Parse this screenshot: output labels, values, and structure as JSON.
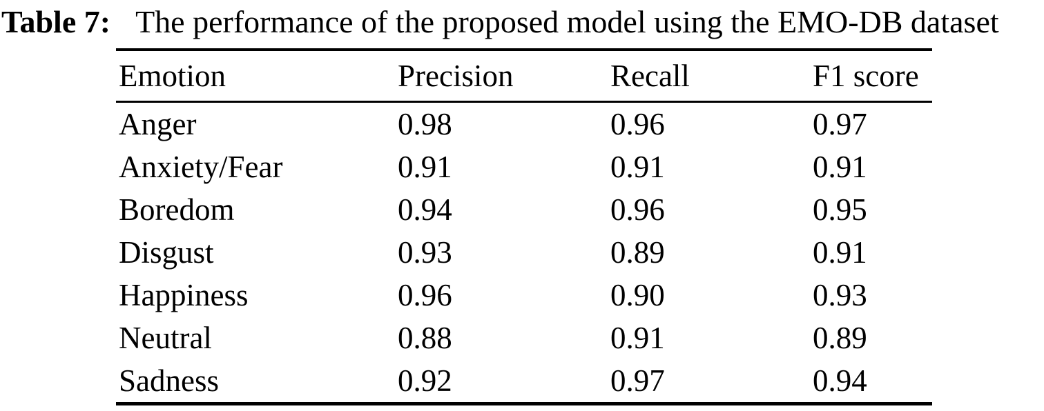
{
  "caption": {
    "label": "Table 7:",
    "text": "The performance of the proposed model using the EMO-DB dataset"
  },
  "table": {
    "columns": [
      "Emotion",
      "Precision",
      "Recall",
      "F1 score"
    ],
    "rows": [
      [
        "Anger",
        "0.98",
        "0.96",
        "0.97"
      ],
      [
        "Anxiety/Fear",
        "0.91",
        "0.91",
        "0.91"
      ],
      [
        "Boredom",
        "0.94",
        "0.96",
        "0.95"
      ],
      [
        "Disgust",
        "0.93",
        "0.89",
        "0.91"
      ],
      [
        "Happiness",
        "0.96",
        "0.90",
        "0.93"
      ],
      [
        "Neutral",
        "0.88",
        "0.91",
        "0.89"
      ],
      [
        "Sadness",
        "0.92",
        "0.97",
        "0.94"
      ]
    ]
  },
  "colors": {
    "text": "#000000",
    "background": "#ffffff",
    "rule": "#000000"
  },
  "chart_data": {
    "type": "table",
    "title": "Table 7: The performance of the proposed model using the EMO-DB dataset",
    "columns": [
      "Emotion",
      "Precision",
      "Recall",
      "F1 score"
    ],
    "rows": [
      [
        "Anger",
        0.98,
        0.96,
        0.97
      ],
      [
        "Anxiety/Fear",
        0.91,
        0.91,
        0.91
      ],
      [
        "Boredom",
        0.94,
        0.96,
        0.95
      ],
      [
        "Disgust",
        0.93,
        0.89,
        0.91
      ],
      [
        "Happiness",
        0.96,
        0.9,
        0.93
      ],
      [
        "Neutral",
        0.88,
        0.91,
        0.89
      ],
      [
        "Sadness",
        0.92,
        0.97,
        0.94
      ]
    ]
  }
}
